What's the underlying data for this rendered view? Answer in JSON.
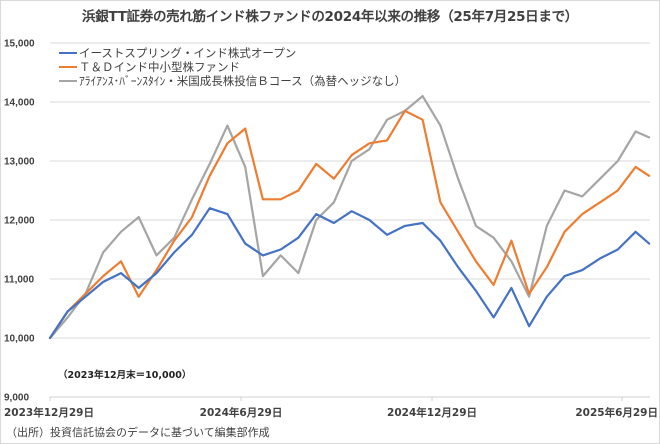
{
  "chart_data": {
    "type": "line",
    "title": "浜銀TT証券の売れ筋インド株ファンドの2024年以来の推移（25年7月25日まで）",
    "xlabel": "",
    "ylabel": "",
    "ylim": [
      9000,
      15000
    ],
    "yticks": [
      9000,
      10000,
      11000,
      12000,
      13000,
      14000,
      15000
    ],
    "ytick_labels": [
      "9,000",
      "10,000",
      "11,000",
      "12,000",
      "13,000",
      "14,000",
      "15,000"
    ],
    "xlim": [
      "2023-12-29",
      "2025-07-25"
    ],
    "xticks": [
      "2023-12-29",
      "2024-06-29",
      "2024-12-29",
      "2025-06-29"
    ],
    "xtick_labels": [
      "2023年12月29日",
      "2024年6月29日",
      "2024年12月29日",
      "2025年6月29日"
    ],
    "grid": true,
    "legend_position": "top-left",
    "annotation": "（2023年12月末＝10,000）",
    "x": [
      "2023-12-29",
      "2024-01-15",
      "2024-02-01",
      "2024-02-18",
      "2024-03-06",
      "2024-03-23",
      "2024-04-09",
      "2024-04-26",
      "2024-05-13",
      "2024-05-30",
      "2024-06-16",
      "2024-07-03",
      "2024-07-20",
      "2024-08-06",
      "2024-08-23",
      "2024-09-09",
      "2024-09-26",
      "2024-10-13",
      "2024-10-30",
      "2024-11-16",
      "2024-12-03",
      "2024-12-20",
      "2025-01-06",
      "2025-01-23",
      "2025-02-09",
      "2025-02-26",
      "2025-03-15",
      "2025-04-01",
      "2025-04-18",
      "2025-05-05",
      "2025-05-22",
      "2025-06-08",
      "2025-06-25",
      "2025-07-12",
      "2025-07-25"
    ],
    "series": [
      {
        "name": "イーストスプリング・インド株式オープン",
        "color": "#4472c4",
        "values": [
          10000,
          10450,
          10700,
          10950,
          11100,
          10850,
          11100,
          11450,
          11750,
          12200,
          12100,
          11600,
          11400,
          11500,
          11700,
          12100,
          11950,
          12150,
          12000,
          11750,
          11900,
          11950,
          11650,
          11200,
          10800,
          10350,
          10850,
          10200,
          10700,
          11050,
          11150,
          11350,
          11500,
          11800,
          11600
        ]
      },
      {
        "name": "Ｔ＆Ｄインド中小型株ファンド",
        "color": "#ed7d31",
        "values": [
          10000,
          10450,
          10750,
          11050,
          11300,
          10700,
          11150,
          11650,
          12050,
          12750,
          13300,
          13550,
          12350,
          12350,
          12500,
          12950,
          12700,
          13100,
          13300,
          13350,
          13850,
          13700,
          12300,
          11800,
          11300,
          10900,
          11650,
          10750,
          11200,
          11800,
          12100,
          12300,
          12500,
          12900,
          12750
        ]
      },
      {
        "name": "ｱﾗｲｱﾝｽ･ﾊﾞｰﾝｽﾀｲﾝ・米国成長株投信Ｂコース（為替ヘッジなし）",
        "color": "#a5a5a5",
        "values": [
          10000,
          10350,
          10750,
          11450,
          11800,
          12050,
          11400,
          11700,
          12350,
          12950,
          13600,
          12900,
          11050,
          11400,
          11100,
          12000,
          12300,
          13000,
          13200,
          13700,
          13850,
          14100,
          13600,
          12700,
          11900,
          11700,
          11300,
          10700,
          11900,
          12500,
          12400,
          12700,
          13000,
          13500,
          13400
        ]
      }
    ]
  },
  "source": "（出所）投資信託協会のデータに基づいて編集部作成"
}
